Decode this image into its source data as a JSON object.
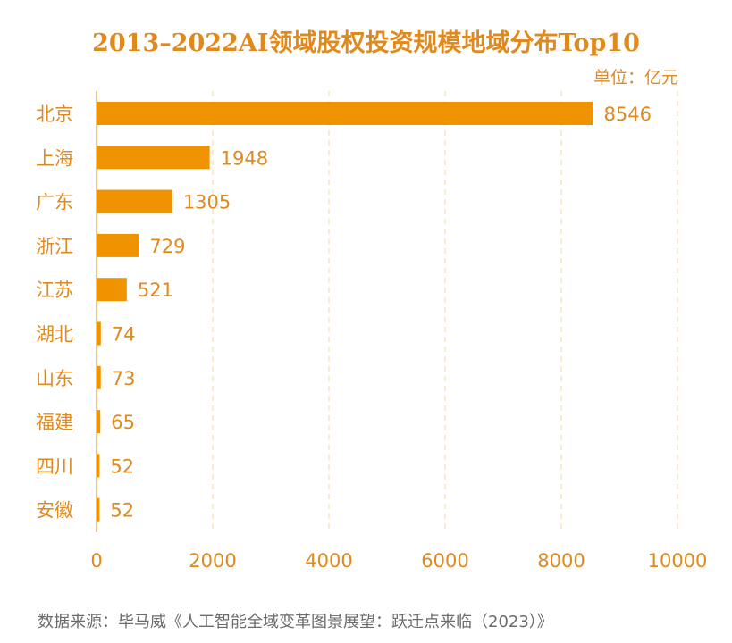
{
  "chart_data": {
    "type": "bar",
    "orientation": "horizontal",
    "title": "2013–2022AI领域股权投资规模地域分布Top10",
    "unit": "单位：亿元",
    "categories": [
      "北京",
      "上海",
      "广东",
      "浙江",
      "江苏",
      "湖北",
      "山东",
      "福建",
      "四川",
      "安徽"
    ],
    "values": [
      8546,
      1948,
      1305,
      729,
      521,
      74,
      73,
      65,
      52,
      52
    ],
    "xlim": [
      0,
      10000
    ],
    "xticks": [
      0,
      2000,
      4000,
      6000,
      8000,
      10000
    ],
    "grid": true,
    "bar_color": "#ef9400",
    "text_color": "#e08a1e",
    "source": "数据来源：毕马威《人工智能全域变革图景展望：跃迁点来临（2023）》"
  }
}
